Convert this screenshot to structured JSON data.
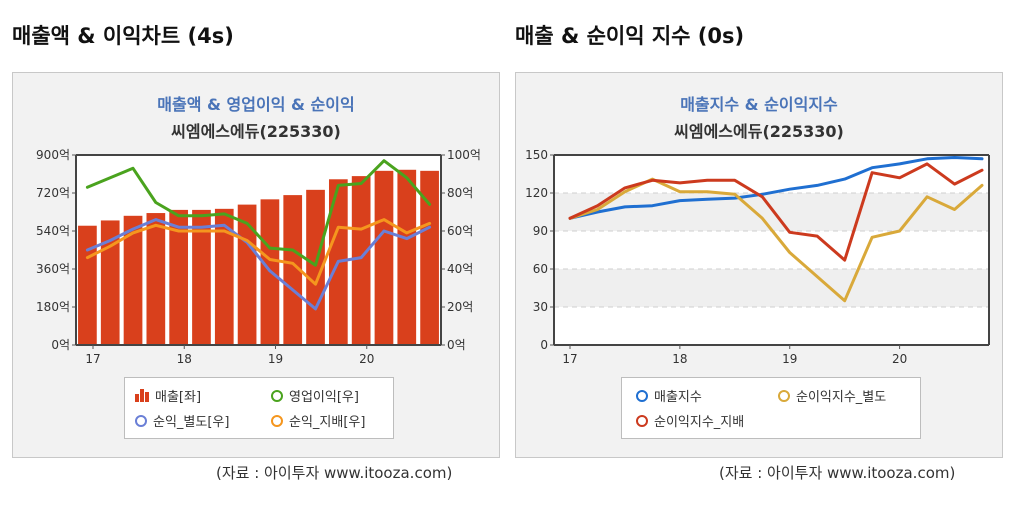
{
  "left": {
    "section_title": "매출액 & 이익차트 (4s)",
    "chart_title": "매출액 & 영업이익 & 순이익",
    "company": "씨엠에스에듀(225330)",
    "source": "(자료 : 아이투자 www.itooza.com)",
    "legend": {
      "revenue": "매출[좌]",
      "op_income": "영업이익[우]",
      "net_separate": "순익_별도[우]",
      "net_controlling": "순익_지배[우]"
    }
  },
  "right": {
    "section_title": "매출 & 순이익 지수 (0s)",
    "chart_title": "매출지수 & 순이익지수",
    "company": "씨엠에스에듀(225330)",
    "source": "(자료 : 아이투자 www.itooza.com)",
    "legend": {
      "revenue_index": "매출지수",
      "net_index_separate": "순이익지수_별도",
      "net_index_controlling": "순이익지수_지배"
    }
  },
  "chart_data": [
    {
      "type": "bar",
      "categories": [
        "17.1Q",
        "17.2Q",
        "17.3Q",
        "17.4Q",
        "18.1Q",
        "18.2Q",
        "18.3Q",
        "18.4Q",
        "19.1Q",
        "19.2Q",
        "19.3Q",
        "19.4Q",
        "20.1Q",
        "20.2Q",
        "20.3Q",
        "20.4Q"
      ],
      "x_tick_labels": [
        "17",
        "18",
        "19",
        "20"
      ],
      "y_left_ticks": [
        "0억",
        "180억",
        "360억",
        "540억",
        "720억",
        "900억"
      ],
      "y_right_ticks": [
        "0억",
        "20억",
        "40억",
        "60억",
        "80억",
        "100억"
      ],
      "ylim_left": [
        0,
        900
      ],
      "ylim_right": [
        0,
        100
      ],
      "series": [
        {
          "name": "매출[좌]",
          "axis": "left",
          "kind": "bar",
          "color": "#d9401c",
          "values": [
            565,
            590,
            612,
            625,
            640,
            640,
            645,
            665,
            690,
            710,
            735,
            785,
            800,
            825,
            830,
            825
          ]
        },
        {
          "name": "영업이익[우]",
          "axis": "right",
          "kind": "line",
          "color": "#4aa31e",
          "values": [
            83,
            88,
            93,
            75,
            68,
            68,
            69,
            64,
            51,
            50,
            42,
            84,
            85,
            97,
            88,
            74
          ]
        },
        {
          "name": "순익_별도[우]",
          "axis": "right",
          "kind": "line",
          "color": "#6a7fd6",
          "values": [
            50,
            55,
            61,
            66,
            62,
            62,
            63,
            54,
            39,
            29,
            19,
            44,
            46,
            60,
            56,
            62
          ]
        },
        {
          "name": "순익_지배[우]",
          "axis": "right",
          "kind": "line",
          "color": "#f5961e",
          "values": [
            46,
            52,
            59,
            63,
            60,
            60,
            60,
            55,
            45,
            43,
            32,
            62,
            61,
            66,
            59,
            64
          ]
        }
      ],
      "grid": false
    },
    {
      "type": "line",
      "categories": [
        "17.1Q",
        "17.2Q",
        "17.3Q",
        "17.4Q",
        "18.1Q",
        "18.2Q",
        "18.3Q",
        "18.4Q",
        "19.1Q",
        "19.2Q",
        "19.3Q",
        "19.4Q",
        "20.1Q",
        "20.2Q",
        "20.3Q",
        "20.4Q"
      ],
      "x_tick_labels": [
        "17",
        "18",
        "19",
        "20"
      ],
      "y_ticks": [
        "0",
        "30",
        "60",
        "90",
        "120",
        "150"
      ],
      "ylim": [
        0,
        150
      ],
      "series": [
        {
          "name": "매출지수",
          "color": "#1f6fd1",
          "values": [
            100,
            105,
            109,
            110,
            114,
            115,
            116,
            119,
            123,
            126,
            131,
            140,
            143,
            147,
            148,
            147
          ]
        },
        {
          "name": "순이익지수_별도",
          "color": "#d9a93a",
          "values": [
            100,
            107,
            121,
            131,
            121,
            121,
            119,
            100,
            73,
            54,
            35,
            85,
            90,
            117,
            107,
            126
          ]
        },
        {
          "name": "순이익지수_지배",
          "color": "#cc3a1e",
          "values": [
            100,
            110,
            124,
            130,
            128,
            130,
            130,
            117,
            89,
            86,
            67,
            136,
            132,
            143,
            127,
            138
          ]
        }
      ],
      "grid": true,
      "grid_style": "dashed"
    }
  ]
}
